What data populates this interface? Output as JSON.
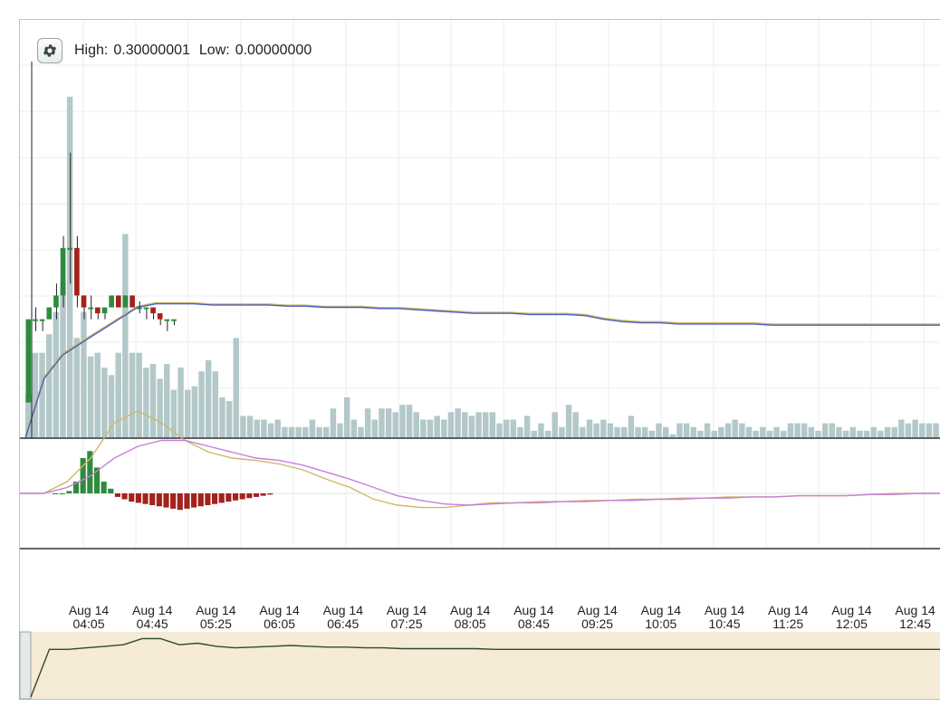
{
  "header": {
    "high_label": "High:",
    "high_value": "0.30000001",
    "low_label": "Low:",
    "low_value": "0.00000000"
  },
  "settings_icon": "gear-icon",
  "colors": {
    "up": "#2e8b3e",
    "down": "#a3221c",
    "volume": "#b3c8c8",
    "ma_blue": "#4a5fc1",
    "ma_gold": "#cfb86a",
    "macd_purple": "#c77fd8",
    "navigator_fill": "#f5ebd6",
    "navigator_line": "#2f4a2f"
  },
  "chart_data": {
    "type": "bar",
    "x_axis": {
      "labels": [
        {
          "date": "Aug 14",
          "time": "04:05"
        },
        {
          "date": "Aug 14",
          "time": "04:45"
        },
        {
          "date": "Aug 14",
          "time": "05:25"
        },
        {
          "date": "Aug 14",
          "time": "06:05"
        },
        {
          "date": "Aug 14",
          "time": "06:45"
        },
        {
          "date": "Aug 14",
          "time": "07:25"
        },
        {
          "date": "Aug 14",
          "time": "08:05"
        },
        {
          "date": "Aug 14",
          "time": "08:45"
        },
        {
          "date": "Aug 14",
          "time": "09:25"
        },
        {
          "date": "Aug 14",
          "time": "10:05"
        },
        {
          "date": "Aug 14",
          "time": "10:45"
        },
        {
          "date": "Aug 14",
          "time": "11:25"
        },
        {
          "date": "Aug 14",
          "time": "12:05"
        },
        {
          "date": "Aug 14",
          "time": "12:45"
        }
      ]
    },
    "price_range": {
      "high": 0.30000001,
      "low": 0.0
    },
    "volume": [
      0.12,
      0.23,
      0.23,
      0.28,
      0.34,
      0.42,
      0.92,
      0.27,
      0.34,
      0.22,
      0.23,
      0.19,
      0.17,
      0.23,
      0.55,
      0.23,
      0.23,
      0.19,
      0.2,
      0.16,
      0.2,
      0.13,
      0.19,
      0.13,
      0.14,
      0.18,
      0.21,
      0.18,
      0.11,
      0.1,
      0.27,
      0.06,
      0.06,
      0.05,
      0.05,
      0.04,
      0.05,
      0.03,
      0.03,
      0.03,
      0.03,
      0.05,
      0.03,
      0.03,
      0.08,
      0.04,
      0.11,
      0.05,
      0.03,
      0.08,
      0.05,
      0.08,
      0.08,
      0.07,
      0.09,
      0.09,
      0.07,
      0.05,
      0.05,
      0.06,
      0.05,
      0.07,
      0.08,
      0.07,
      0.06,
      0.07,
      0.07,
      0.07,
      0.04,
      0.05,
      0.05,
      0.03,
      0.06,
      0.02,
      0.04,
      0.02,
      0.07,
      0.03,
      0.09,
      0.07,
      0.03,
      0.05,
      0.04,
      0.05,
      0.04,
      0.03,
      0.03,
      0.06,
      0.03,
      0.03,
      0.02,
      0.04,
      0.03,
      0.01,
      0.04,
      0.04,
      0.03,
      0.02,
      0.04,
      0.02,
      0.03,
      0.04,
      0.05,
      0.04,
      0.03,
      0.02,
      0.03,
      0.02,
      0.03,
      0.02,
      0.04,
      0.04,
      0.04,
      0.03,
      0.02,
      0.04,
      0.04,
      0.03,
      0.02,
      0.03,
      0.02,
      0.02,
      0.03,
      0.02,
      0.03,
      0.03,
      0.05,
      0.04,
      0.05,
      0.04,
      0.04,
      0.04
    ],
    "candles": [
      {
        "i": 0,
        "open": 0.03,
        "close": 0.1,
        "high": 0.1,
        "low": 0.03
      },
      {
        "i": 1,
        "open": 0.1,
        "close": 0.1,
        "high": 0.11,
        "low": 0.09
      },
      {
        "i": 2,
        "open": 0.1,
        "close": 0.1,
        "high": 0.1,
        "low": 0.09
      },
      {
        "i": 3,
        "open": 0.1,
        "close": 0.11,
        "high": 0.11,
        "low": 0.1
      },
      {
        "i": 4,
        "open": 0.11,
        "close": 0.12,
        "high": 0.13,
        "low": 0.1
      },
      {
        "i": 5,
        "open": 0.12,
        "close": 0.16,
        "high": 0.17,
        "low": 0.11
      },
      {
        "i": 6,
        "open": 0.16,
        "close": 0.16,
        "high": 0.24,
        "low": 0.13
      },
      {
        "i": 7,
        "open": 0.16,
        "close": 0.12,
        "high": 0.17,
        "low": 0.11
      },
      {
        "i": 8,
        "open": 0.12,
        "close": 0.11,
        "high": 0.12,
        "low": 0.1
      },
      {
        "i": 9,
        "open": 0.11,
        "close": 0.11,
        "high": 0.12,
        "low": 0.1
      },
      {
        "i": 10,
        "open": 0.11,
        "close": 0.105,
        "high": 0.11,
        "low": 0.1
      },
      {
        "i": 11,
        "open": 0.105,
        "close": 0.11,
        "high": 0.11,
        "low": 0.1
      },
      {
        "i": 12,
        "open": 0.11,
        "close": 0.12,
        "high": 0.12,
        "low": 0.11
      },
      {
        "i": 13,
        "open": 0.12,
        "close": 0.11,
        "high": 0.12,
        "low": 0.11
      },
      {
        "i": 14,
        "open": 0.11,
        "close": 0.12,
        "high": 0.12,
        "low": 0.11
      },
      {
        "i": 15,
        "open": 0.12,
        "close": 0.11,
        "high": 0.12,
        "low": 0.11
      },
      {
        "i": 16,
        "open": 0.11,
        "close": 0.11,
        "high": 0.115,
        "low": 0.105
      },
      {
        "i": 17,
        "open": 0.11,
        "close": 0.11,
        "high": 0.11,
        "low": 0.1
      },
      {
        "i": 18,
        "open": 0.11,
        "close": 0.105,
        "high": 0.11,
        "low": 0.1
      },
      {
        "i": 19,
        "open": 0.105,
        "close": 0.1,
        "high": 0.105,
        "low": 0.095
      },
      {
        "i": 20,
        "open": 0.1,
        "close": 0.1,
        "high": 0.1,
        "low": 0.09
      },
      {
        "i": 21,
        "open": 0.1,
        "close": 0.1,
        "high": 0.1,
        "low": 0.095
      }
    ],
    "ma_blue": [
      0.0,
      0.05,
      0.07,
      0.08,
      0.09,
      0.1,
      0.11,
      0.113,
      0.113,
      0.113,
      0.112,
      0.112,
      0.112,
      0.112,
      0.111,
      0.111,
      0.11,
      0.11,
      0.11,
      0.109,
      0.109,
      0.108,
      0.107,
      0.106,
      0.105,
      0.105,
      0.105,
      0.104,
      0.104,
      0.104,
      0.103,
      0.1,
      0.098,
      0.097,
      0.097,
      0.096,
      0.096,
      0.096,
      0.096,
      0.096,
      0.095,
      0.095,
      0.095,
      0.095,
      0.095,
      0.095,
      0.095,
      0.095,
      0.095,
      0.095
    ],
    "macd_line": [
      0.0,
      0.0,
      0.01,
      0.03,
      0.06,
      0.07,
      0.06,
      0.045,
      0.035,
      0.03,
      0.028,
      0.025,
      0.02,
      0.012,
      0.005,
      -0.005,
      -0.01,
      -0.012,
      -0.012,
      -0.01,
      -0.008,
      -0.008,
      -0.007,
      -0.007,
      -0.006,
      -0.006,
      -0.005,
      -0.005,
      -0.004,
      -0.004,
      -0.003,
      -0.003,
      -0.003,
      -0.002,
      -0.002,
      -0.002,
      -0.001,
      0.0,
      0.0,
      0.0
    ],
    "macd_signal": [
      0.0,
      0.0,
      0.005,
      0.015,
      0.03,
      0.04,
      0.045,
      0.045,
      0.04,
      0.035,
      0.03,
      0.028,
      0.024,
      0.018,
      0.012,
      0.005,
      -0.002,
      -0.006,
      -0.009,
      -0.01,
      -0.009,
      -0.008,
      -0.008,
      -0.007,
      -0.007,
      -0.006,
      -0.006,
      -0.005,
      -0.005,
      -0.004,
      -0.004,
      -0.003,
      -0.003,
      -0.002,
      -0.002,
      -0.002,
      -0.001,
      -0.001,
      0.0,
      0.0
    ],
    "macd_hist": [
      0.0,
      0.0,
      0.002,
      0.01,
      0.03,
      0.036,
      0.022,
      0.01,
      0.004,
      -0.003,
      -0.005,
      -0.007,
      -0.008,
      -0.009,
      -0.01,
      -0.011,
      -0.012,
      -0.013,
      -0.014,
      -0.013,
      -0.012,
      -0.011,
      -0.01,
      -0.009,
      -0.008,
      -0.007,
      -0.006,
      -0.005,
      -0.004,
      -0.003,
      -0.002,
      -0.001
    ],
    "navigator_series": [
      0.0,
      0.62,
      0.62,
      0.64,
      0.66,
      0.68,
      0.76,
      0.76,
      0.68,
      0.7,
      0.66,
      0.64,
      0.65,
      0.66,
      0.67,
      0.66,
      0.65,
      0.65,
      0.64,
      0.64,
      0.63,
      0.63,
      0.63,
      0.63,
      0.63,
      0.62,
      0.62,
      0.62,
      0.62,
      0.62,
      0.62,
      0.62,
      0.62,
      0.62,
      0.62,
      0.62,
      0.62,
      0.62,
      0.62,
      0.62,
      0.62,
      0.62,
      0.62,
      0.62,
      0.62,
      0.62,
      0.62,
      0.62,
      0.62,
      0.62
    ]
  }
}
